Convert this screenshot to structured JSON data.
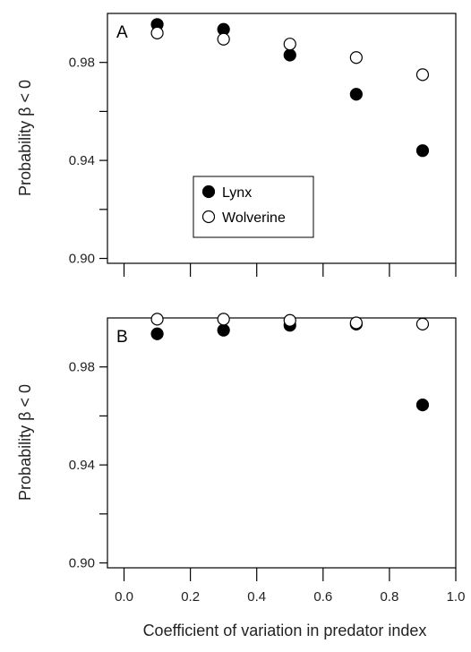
{
  "chart_data": [
    {
      "panel": "A",
      "type": "scatter",
      "xlabel": "",
      "ylabel": "Probability β < 0",
      "xlim": [
        -0.05,
        1.0
      ],
      "ylim": [
        0.898,
        1.0
      ],
      "yticks": [
        0.9,
        0.94,
        0.98
      ],
      "ytick_labels": [
        "0.90",
        "0.94",
        "0.98"
      ],
      "y_minor_ticks": [
        0.92,
        0.96
      ],
      "xticks": [
        0.0,
        0.2,
        0.4,
        0.6,
        0.8,
        1.0
      ],
      "show_x_tick_labels": false,
      "legend": {
        "placement": "center-left",
        "entries": [
          "Lynx",
          "Wolverine"
        ]
      },
      "series": [
        {
          "name": "Lynx",
          "marker": "filled-circle",
          "x": [
            0.1,
            0.3,
            0.5,
            0.7,
            0.9
          ],
          "y": [
            0.9955,
            0.9935,
            0.983,
            0.967,
            0.944
          ]
        },
        {
          "name": "Wolverine",
          "marker": "open-circle",
          "x": [
            0.1,
            0.3,
            0.5,
            0.7,
            0.9
          ],
          "y": [
            0.992,
            0.9895,
            0.9875,
            0.982,
            0.975
          ]
        }
      ]
    },
    {
      "panel": "B",
      "type": "scatter",
      "xlabel": "Coefficient of variation in predator index",
      "ylabel": "Probability β < 0",
      "xlim": [
        -0.05,
        1.0
      ],
      "ylim": [
        0.898,
        1.0
      ],
      "yticks": [
        0.9,
        0.94,
        0.98
      ],
      "ytick_labels": [
        "0.90",
        "0.94",
        "0.98"
      ],
      "y_minor_ticks": [
        0.92,
        0.96
      ],
      "xticks": [
        0.0,
        0.2,
        0.4,
        0.6,
        0.8,
        1.0
      ],
      "xtick_labels": [
        "0.0",
        "0.2",
        "0.4",
        "0.6",
        "0.8",
        "1.0"
      ],
      "show_x_tick_labels": true,
      "series": [
        {
          "name": "Lynx",
          "marker": "filled-circle",
          "x": [
            0.1,
            0.3,
            0.5,
            0.7,
            0.9
          ],
          "y": [
            0.9935,
            0.995,
            0.997,
            0.9975,
            0.9645
          ]
        },
        {
          "name": "Wolverine",
          "marker": "open-circle",
          "x": [
            0.1,
            0.3,
            0.5,
            0.7,
            0.9
          ],
          "y": [
            0.9995,
            0.9995,
            0.999,
            0.998,
            0.9975
          ]
        }
      ]
    }
  ]
}
